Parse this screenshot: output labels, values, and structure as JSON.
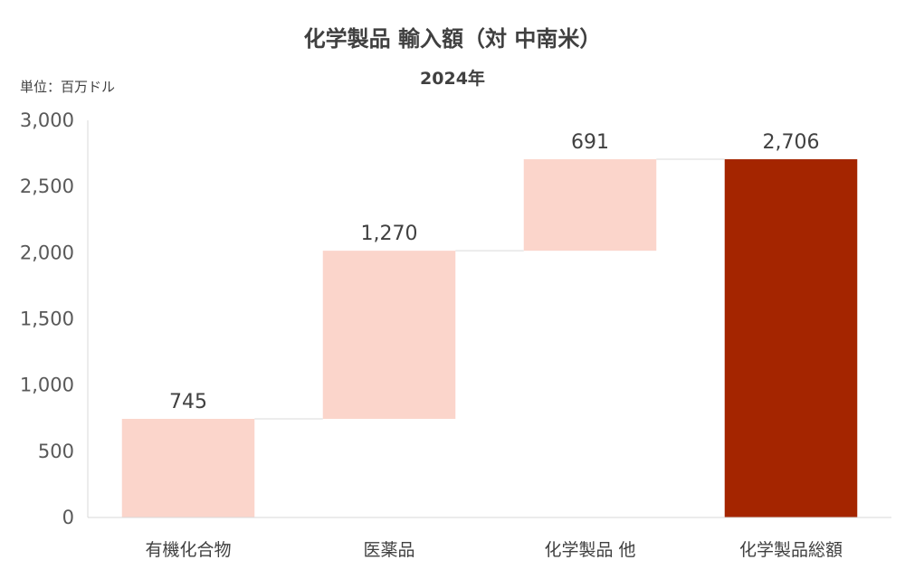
{
  "chart_data": {
    "type": "bar",
    "subtype": "waterfall",
    "title": "化学製品 輸入額（対 中南米）",
    "subtitle": "2024年",
    "unit_label": "単位：百万ドル",
    "categories": [
      "有機化合物",
      "医薬品",
      "化学製品 他",
      "化学製品総額"
    ],
    "values": [
      745,
      1270,
      691,
      2706
    ],
    "data_labels": [
      "745",
      "1,270",
      "691",
      "2,706"
    ],
    "total_index": 3,
    "ylim": [
      0,
      3000
    ],
    "yticks": [
      0,
      500,
      1000,
      1500,
      2000,
      2500,
      3000
    ],
    "ytick_labels": [
      "0",
      "500",
      "1,000",
      "1,500",
      "2,000",
      "2,500",
      "3,000"
    ],
    "grid": false,
    "colors": {
      "increment": "#FBD5CB",
      "total": "#A42500",
      "connector": "#D9D9D9",
      "axis": "#D9D9D9"
    }
  }
}
